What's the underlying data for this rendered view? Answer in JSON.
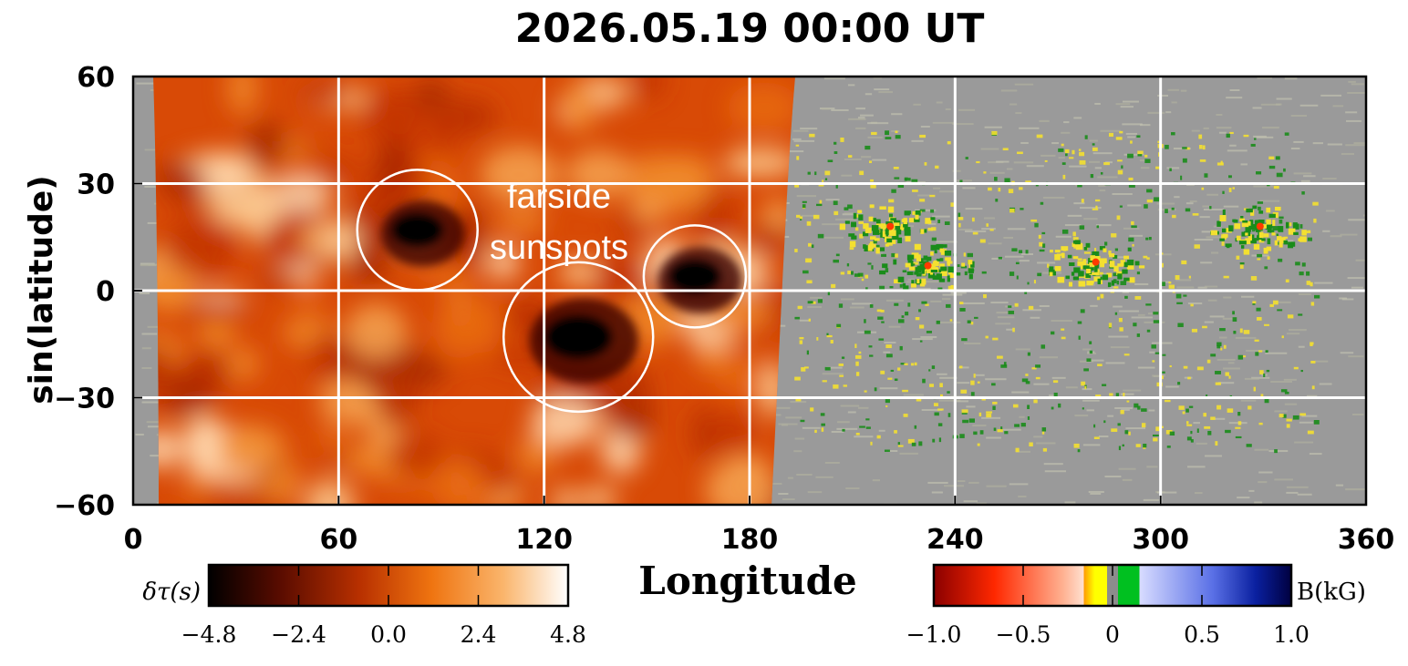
{
  "chart_data": {
    "type": "heatmap",
    "title": "2026.05.19  00:00  UT",
    "xlabel": "Longitude",
    "ylabel": "sin(latitude)",
    "xlim": [
      0,
      360
    ],
    "ylim": [
      -60,
      60
    ],
    "xticks": [
      0,
      60,
      120,
      180,
      240,
      300,
      360
    ],
    "xtick_labels": [
      "0",
      "60",
      "120",
      "180",
      "240",
      "300",
      "360"
    ],
    "yticks": [
      60,
      30,
      0,
      -30,
      -60
    ],
    "ytick_labels": [
      "60",
      "30",
      "0",
      "−30",
      "−60"
    ],
    "grid": true,
    "farside_extent_longitude": [
      5,
      190
    ],
    "annotation": {
      "text_line1": "farside",
      "text_line2": "sunspots"
    },
    "farside_sunspots": [
      {
        "longitude": 83,
        "latitude": 17
      },
      {
        "longitude": 130,
        "latitude": -13
      },
      {
        "longitude": 164,
        "latitude": 4
      }
    ],
    "nearside_active_regions": [
      {
        "longitude": 220,
        "latitude": 18
      },
      {
        "longitude": 231,
        "latitude": 7
      },
      {
        "longitude": 280,
        "latitude": 8
      },
      {
        "longitude": 328,
        "latitude": 18
      }
    ],
    "colorbar_left": {
      "label": "δτ(s)",
      "range": [
        -4.8,
        4.8
      ],
      "tick_labels": [
        "−4.8",
        "−2.4",
        "0.0",
        "2.4",
        "4.8"
      ],
      "colors": [
        "#000000",
        "#7a1200",
        "#c83a00",
        "#f07a10",
        "#fab46a",
        "#ffffff"
      ]
    },
    "colorbar_right": {
      "label": "B(kG)",
      "range": [
        -1.0,
        1.0
      ],
      "tick_labels": [
        "−1.0",
        "−0.5",
        "0",
        "0.5",
        "1.0"
      ],
      "colors": [
        "#8a0000",
        "#ff3a00",
        "#ffc8b0",
        "#ffff00",
        "#8c8c8c",
        "#00c820",
        "#c8ccff",
        "#1e3cd0",
        "#000050"
      ]
    },
    "colors": {
      "neutral_gray": "#9a9a9a",
      "positive_green": "#1a8c1a",
      "negative_yellow": "#f4e030",
      "grid": "#ffffff"
    }
  }
}
